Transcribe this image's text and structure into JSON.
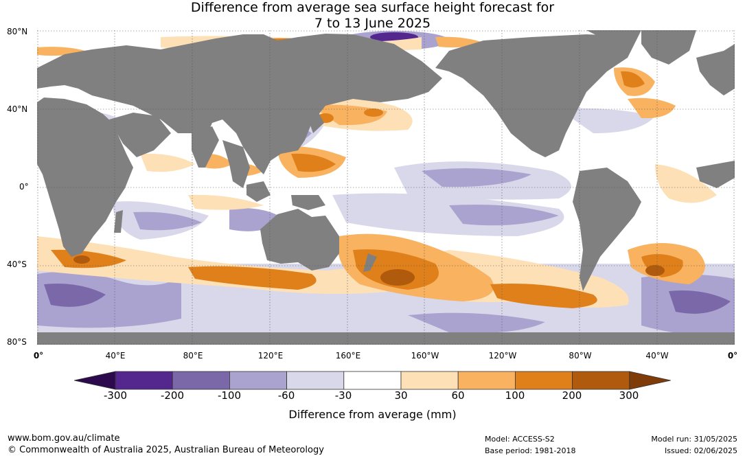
{
  "title": {
    "line1": "Difference from average sea surface height forecast for",
    "line2": "7 to 13 June 2025"
  },
  "lat_labels": [
    "80°N",
    "40°N",
    "0°",
    "40°S",
    "80°S"
  ],
  "lon_labels": [
    "0°",
    "40°E",
    "80°E",
    "120°E",
    "160°E",
    "160°W",
    "120°W",
    "80°W",
    "40°W",
    "0°"
  ],
  "colorbar": {
    "title": "Difference from average (mm)",
    "ticks": [
      "-300",
      "-200",
      "-100",
      "-60",
      "-30",
      "30",
      "60",
      "100",
      "200",
      "300"
    ],
    "colors": [
      "#2d0a4e",
      "#54278f",
      "#7a68a8",
      "#aba3cf",
      "#d9d8eb",
      "#ffffff",
      "#fde0b6",
      "#f9b25f",
      "#e0801a",
      "#b05a0e",
      "#7f3b08"
    ]
  },
  "colors": {
    "land": "#808080",
    "ocean": "#ffffff"
  },
  "footer": {
    "website": "www.bom.gov.au/climate",
    "copyright": "© Commonwealth of Australia 2025, Australian Bureau of Meteorology",
    "model": "Model: ACCESS-S2",
    "base_period": "Base period: 1981-2018",
    "model_run": "Model run: 31/05/2025",
    "issued": "Issued: 02/06/2025"
  }
}
